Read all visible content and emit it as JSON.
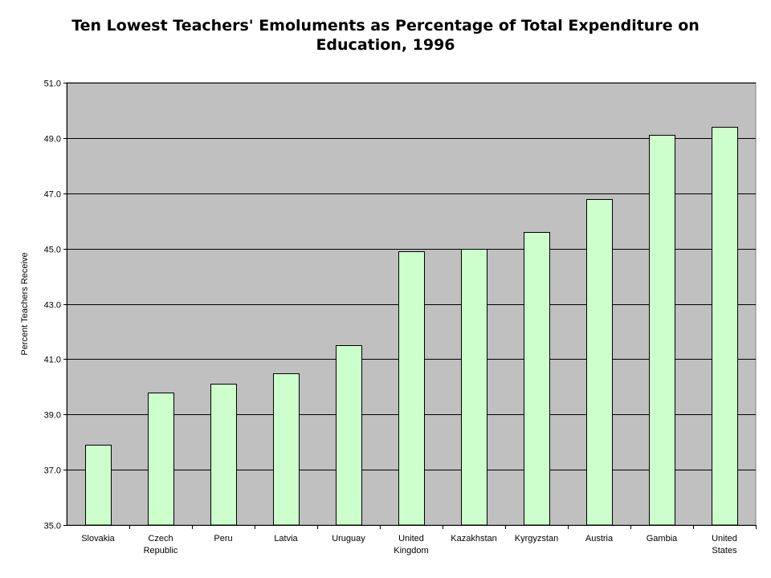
{
  "chart_data": {
    "type": "bar",
    "title": "Ten Lowest Teachers' Emoluments as Percentage of Total Expenditure on\nEducation, 1996",
    "xlabel": "",
    "ylabel": "Percent Teachers Receive",
    "categories": [
      [
        "Slovakia"
      ],
      [
        "Czech",
        "Republic"
      ],
      [
        "Peru"
      ],
      [
        "Latvia"
      ],
      [
        "Uruguay"
      ],
      [
        "United",
        "Kingdom"
      ],
      [
        "Kazakhstan"
      ],
      [
        "Kyrgyzstan"
      ],
      [
        "Austria"
      ],
      [
        "Gambia"
      ],
      [
        "United",
        "States"
      ]
    ],
    "values": [
      37.9,
      39.8,
      40.1,
      40.5,
      41.5,
      44.9,
      45.0,
      45.6,
      46.8,
      49.1,
      49.4
    ],
    "ylim": [
      35.0,
      51.0
    ],
    "yticks": [
      "35.0",
      "37.0",
      "39.0",
      "41.0",
      "43.0",
      "45.0",
      "47.0",
      "49.0",
      "51.0"
    ],
    "grid": true,
    "legend": "none",
    "colors": {
      "plot_background": "#c0c0c0",
      "bar_fill": "#ccffcc",
      "bar_stroke": "#000000",
      "grid": "#000000"
    }
  }
}
